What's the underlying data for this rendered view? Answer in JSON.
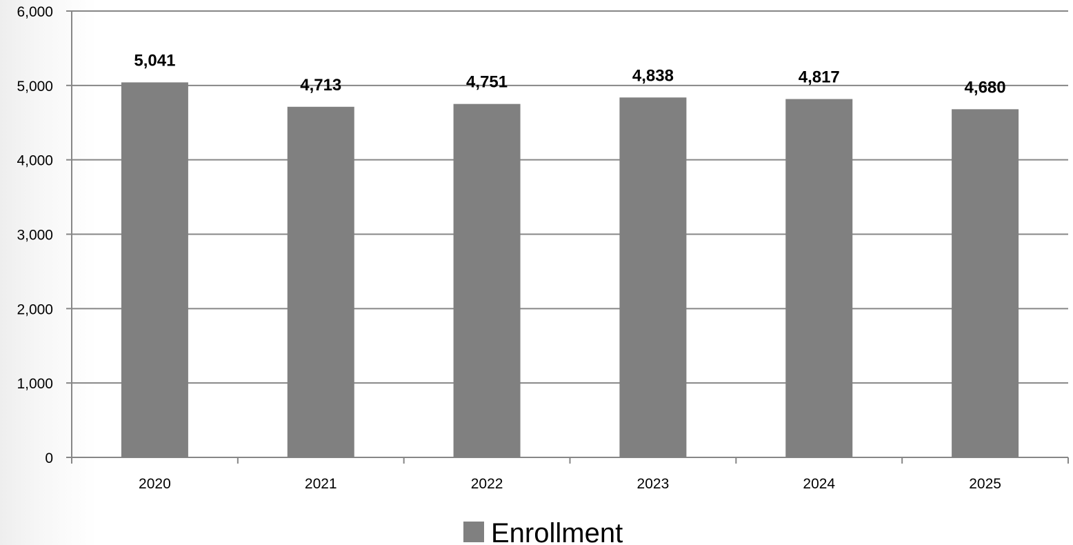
{
  "chart_data": {
    "type": "bar",
    "categories": [
      "2020",
      "2021",
      "2022",
      "2023",
      "2024",
      "2025"
    ],
    "series": [
      {
        "name": "Enrollment",
        "values": [
          5041,
          4713,
          4751,
          4838,
          4817,
          4680
        ],
        "data_labels": [
          "5,041",
          "4,713",
          "4,751",
          "4,838",
          "4,817",
          "4,680"
        ],
        "color": "#808080"
      }
    ],
    "ylim": [
      0,
      6000
    ],
    "yticks": [
      0,
      1000,
      2000,
      3000,
      4000,
      5000,
      6000
    ],
    "ytick_labels": [
      "0",
      "1,000",
      "2,000",
      "3,000",
      "4,000",
      "5,000",
      "6,000"
    ],
    "title": "",
    "xlabel": "",
    "ylabel": "",
    "grid": true,
    "gridline_color": "#868686",
    "legend": {
      "position": "bottom",
      "entries": [
        "Enrollment"
      ]
    }
  }
}
